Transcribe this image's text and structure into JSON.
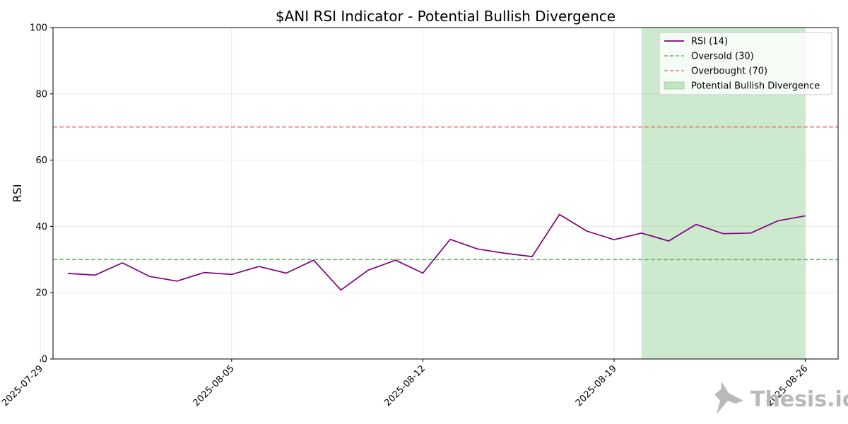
{
  "chart_data": {
    "type": "line",
    "title": "$ANI RSI Indicator - Potential Bullish Divergence",
    "xlabel": "",
    "ylabel": "RSI",
    "ylim": [
      0,
      100
    ],
    "yticks": [
      0,
      20,
      40,
      60,
      80,
      100
    ],
    "xlim": [
      "2025-07-29",
      "2025-08-27"
    ],
    "xticks": [
      "2025-07-29",
      "2025-08-05",
      "2025-08-12",
      "2025-08-19",
      "2025-08-26"
    ],
    "grid": true,
    "legend_position": "top-right",
    "series": [
      {
        "name": "RSI (14)",
        "color": "#800080",
        "x": [
          "2025-07-30",
          "2025-07-31",
          "2025-08-01",
          "2025-08-02",
          "2025-08-03",
          "2025-08-04",
          "2025-08-05",
          "2025-08-06",
          "2025-08-07",
          "2025-08-08",
          "2025-08-09",
          "2025-08-10",
          "2025-08-11",
          "2025-08-12",
          "2025-08-13",
          "2025-08-14",
          "2025-08-15",
          "2025-08-16",
          "2025-08-17",
          "2025-08-18",
          "2025-08-19",
          "2025-08-20",
          "2025-08-21",
          "2025-08-22",
          "2025-08-23",
          "2025-08-24",
          "2025-08-25",
          "2025-08-26"
        ],
        "values": [
          25.8,
          25.3,
          29.0,
          24.9,
          23.5,
          26.1,
          25.5,
          27.9,
          25.9,
          29.8,
          20.8,
          26.8,
          29.8,
          25.9,
          36.1,
          33.2,
          31.9,
          30.9,
          43.6,
          38.6,
          36.0,
          38.0,
          35.6,
          40.6,
          37.8,
          38.0,
          41.7,
          43.2
        ]
      }
    ],
    "hlines": [
      {
        "name": "Oversold (30)",
        "value": 30,
        "color": "#4caf50",
        "style": "dashed"
      },
      {
        "name": "Overbought (70)",
        "value": 70,
        "color": "#f06262",
        "style": "dashed"
      }
    ],
    "spans": [
      {
        "name": "Potential Bullish Divergence",
        "from": "2025-08-20",
        "to": "2025-08-26",
        "color": "#4caf50"
      }
    ]
  },
  "watermark": {
    "text": "Thesis.io"
  }
}
